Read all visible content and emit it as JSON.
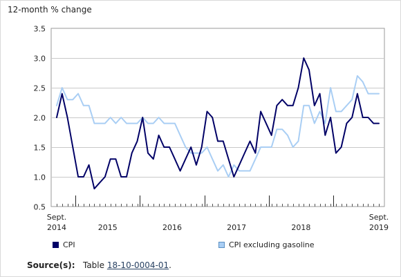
{
  "chart_data": {
    "type": "line",
    "ylabel": "12-month % change",
    "ylim": [
      0.5,
      3.5
    ],
    "yticks": [
      "0.5",
      "1.0",
      "1.5",
      "2.0",
      "2.5",
      "3.0",
      "3.5"
    ],
    "xlabels": [
      {
        "line1": "Sept.",
        "line2": "2014"
      },
      {
        "line1": "",
        "line2": "2015"
      },
      {
        "line1": "",
        "line2": "2016"
      },
      {
        "line1": "",
        "line2": "2017"
      },
      {
        "line1": "",
        "line2": "2018"
      },
      {
        "line1": "Sept.",
        "line2": "2019"
      }
    ],
    "x": [
      "2014-09",
      "2014-10",
      "2014-11",
      "2014-12",
      "2015-01",
      "2015-02",
      "2015-03",
      "2015-04",
      "2015-05",
      "2015-06",
      "2015-07",
      "2015-08",
      "2015-09",
      "2015-10",
      "2015-11",
      "2015-12",
      "2016-01",
      "2016-02",
      "2016-03",
      "2016-04",
      "2016-05",
      "2016-06",
      "2016-07",
      "2016-08",
      "2016-09",
      "2016-10",
      "2016-11",
      "2016-12",
      "2017-01",
      "2017-02",
      "2017-03",
      "2017-04",
      "2017-05",
      "2017-06",
      "2017-07",
      "2017-08",
      "2017-09",
      "2017-10",
      "2017-11",
      "2017-12",
      "2018-01",
      "2018-02",
      "2018-03",
      "2018-04",
      "2018-05",
      "2018-06",
      "2018-07",
      "2018-08",
      "2018-09",
      "2018-10",
      "2018-11",
      "2018-12",
      "2019-01",
      "2019-02",
      "2019-03",
      "2019-04",
      "2019-05",
      "2019-06",
      "2019-07",
      "2019-08",
      "2019-09"
    ],
    "series": [
      {
        "name": "CPI",
        "color": "#000066",
        "values": [
          2.0,
          2.4,
          2.0,
          1.5,
          1.0,
          1.0,
          1.2,
          0.8,
          0.9,
          1.0,
          1.3,
          1.3,
          1.0,
          1.0,
          1.4,
          1.6,
          2.0,
          1.4,
          1.3,
          1.7,
          1.5,
          1.5,
          1.3,
          1.1,
          1.3,
          1.5,
          1.2,
          1.5,
          2.1,
          2.0,
          1.6,
          1.6,
          1.3,
          1.0,
          1.2,
          1.4,
          1.6,
          1.4,
          2.1,
          1.9,
          1.7,
          2.2,
          2.3,
          2.2,
          2.2,
          2.5,
          3.0,
          2.8,
          2.2,
          2.4,
          1.7,
          2.0,
          1.4,
          1.5,
          1.9,
          2.0,
          2.4,
          2.0,
          2.0,
          1.9,
          1.9
        ]
      },
      {
        "name": "CPI excluding gasoline",
        "color": "#a9cef4",
        "values": [
          2.2,
          2.5,
          2.3,
          2.3,
          2.4,
          2.2,
          2.2,
          1.9,
          1.9,
          1.9,
          2.0,
          1.9,
          2.0,
          1.9,
          1.9,
          1.9,
          2.0,
          1.9,
          1.9,
          2.0,
          1.9,
          1.9,
          1.9,
          1.7,
          1.5,
          1.4,
          1.4,
          1.4,
          1.5,
          1.3,
          1.1,
          1.2,
          1.0,
          1.2,
          1.1,
          1.1,
          1.1,
          1.3,
          1.5,
          1.5,
          1.5,
          1.8,
          1.8,
          1.7,
          1.5,
          1.6,
          2.2,
          2.2,
          1.9,
          2.1,
          1.9,
          2.5,
          2.1,
          2.1,
          2.2,
          2.3,
          2.7,
          2.6,
          2.4,
          2.4,
          2.4
        ]
      }
    ],
    "grid": true,
    "legend": "bottom"
  },
  "source": {
    "label": "Source(s):",
    "prefix": "Table",
    "link": "18-10-0004-01",
    "suffix": "."
  }
}
